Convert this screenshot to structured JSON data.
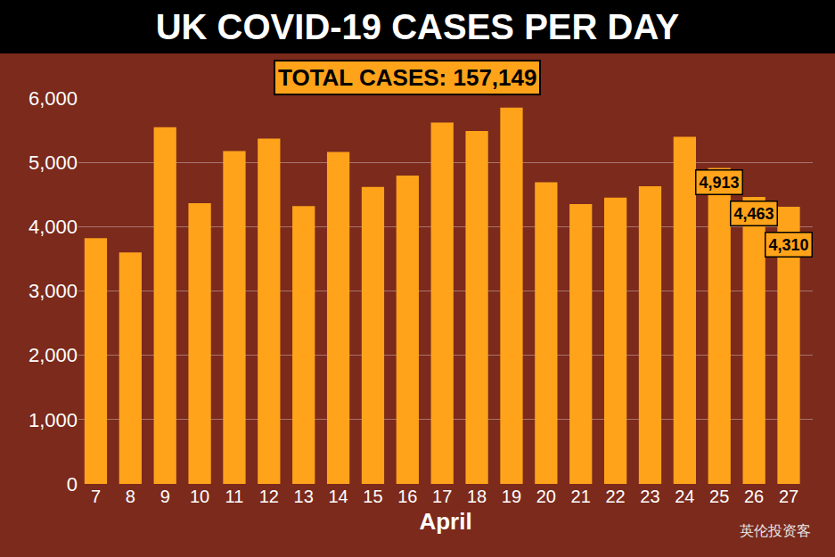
{
  "chart_data": {
    "type": "bar",
    "title": "UK COVID-19 CASES PER DAY",
    "x_label": "April",
    "categories": [
      "7",
      "8",
      "9",
      "10",
      "11",
      "12",
      "13",
      "14",
      "15",
      "16",
      "17",
      "18",
      "19",
      "20",
      "21",
      "22",
      "23",
      "24",
      "25",
      "26",
      "27"
    ],
    "values": [
      3820,
      3600,
      5545,
      4366,
      5177,
      5369,
      4321,
      5162,
      4617,
      4793,
      5620,
      5487,
      5850,
      4690,
      4351,
      4451,
      4628,
      5398,
      4913,
      4463,
      4310
    ],
    "value_labels": [
      null,
      null,
      null,
      null,
      null,
      null,
      null,
      null,
      null,
      null,
      null,
      null,
      null,
      null,
      null,
      null,
      null,
      null,
      "4,913",
      "4,463",
      "4,310"
    ],
    "data_labels": true,
    "color": "#ffa31a",
    "ylim": [
      0,
      6000
    ],
    "yticks": [
      0,
      {
        "value": 1000,
        "label": "1,000"
      },
      {
        "value": 2000,
        "label": "2,000"
      },
      {
        "value": 3000,
        "label": "3,000"
      },
      {
        "value": 4000,
        "label": "4,000"
      },
      {
        "value": 5000,
        "label": "5,000"
      },
      {
        "value": 6000,
        "label": "6,000"
      }
    ],
    "grid": true,
    "annotations": [
      {
        "text": "TOTAL CASES: 157,149"
      },
      {
        "text": "英伦投资客"
      }
    ]
  }
}
